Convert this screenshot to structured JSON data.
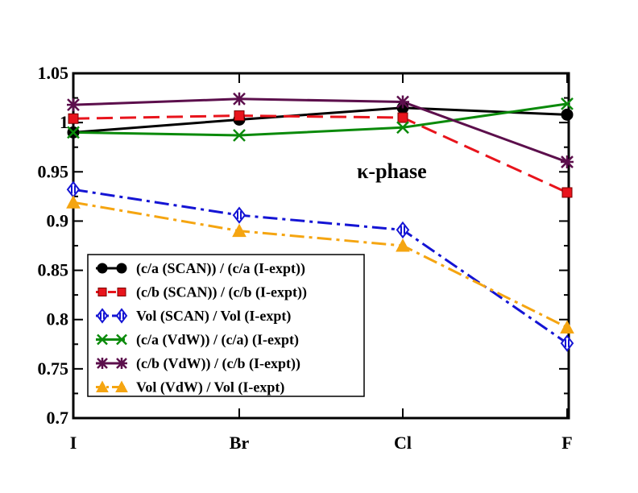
{
  "chart_data": {
    "type": "line",
    "title": "",
    "xlabel": "",
    "ylabel": "",
    "categories": [
      "I",
      "Br",
      "Cl",
      "F"
    ],
    "ylim": [
      0.7,
      1.05
    ],
    "yticks": [
      "0.7",
      "0.75",
      "0.8",
      "0.85",
      "0.9",
      "0.95",
      "1",
      "1.05"
    ],
    "grid": false,
    "legend_position": "bottom-left",
    "annotation": "κ-phase",
    "series": [
      {
        "name": "(c/a (SCAN)) / (c/a (I-expt))",
        "values": [
          0.99,
          1.003,
          1.015,
          1.008
        ],
        "color": "#000000",
        "marker": "circle",
        "dash": "solid"
      },
      {
        "name": "(c/b (SCAN)) / (c/b (I-expt))",
        "values": [
          1.004,
          1.007,
          1.005,
          0.929
        ],
        "color": "#e8141c",
        "marker": "square",
        "dash": "dashed"
      },
      {
        "name": "Vol (SCAN) / Vol (I-expt)",
        "values": [
          0.932,
          0.906,
          0.891,
          0.776
        ],
        "color": "#1414d4",
        "marker": "diamond",
        "dash": "dashdot"
      },
      {
        "name": "(c/a (VdW)) / (c/a) (I-expt)",
        "values": [
          0.99,
          0.987,
          0.995,
          1.019
        ],
        "color": "#0a8a0a",
        "marker": "x",
        "dash": "solid"
      },
      {
        "name": "(c/b (VdW)) / (c/b (I-expt))",
        "values": [
          1.018,
          1.024,
          1.021,
          0.96
        ],
        "color": "#5c0f4c",
        "marker": "star",
        "dash": "solid"
      },
      {
        "name": "Vol (VdW) / Vol (I-expt)",
        "values": [
          0.919,
          0.89,
          0.875,
          0.792
        ],
        "color": "#f5a511",
        "marker": "triangle",
        "dash": "dashdot"
      }
    ]
  }
}
